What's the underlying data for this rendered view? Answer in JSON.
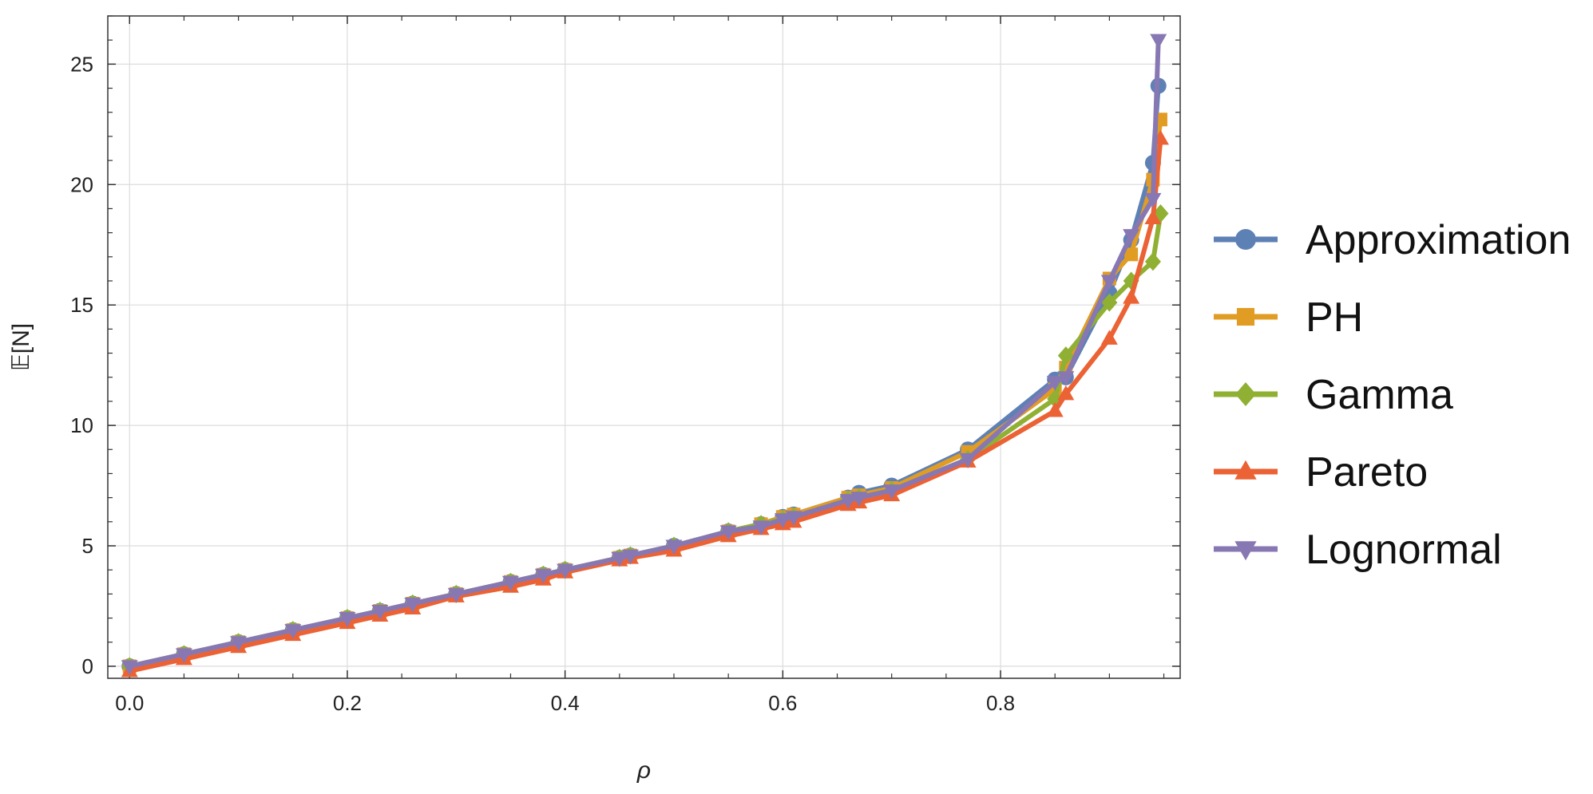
{
  "chart_data": {
    "type": "line",
    "xlabel": "ρ",
    "ylabel": "𝔼[N]",
    "xlim": [
      -0.02,
      0.965
    ],
    "ylim": [
      -0.5,
      27.0
    ],
    "x_ticks": [
      0.0,
      0.2,
      0.4,
      0.6,
      0.8
    ],
    "x_tick_labels": [
      "0.0",
      "0.2",
      "0.4",
      "0.6",
      "0.8"
    ],
    "y_ticks": [
      0,
      5,
      10,
      15,
      20,
      25
    ],
    "y_tick_labels": [
      "0",
      "5",
      "10",
      "15",
      "20",
      "25"
    ],
    "grid": true,
    "legend_position": "right",
    "series": [
      {
        "name": "Approximation",
        "color": "#5e81b5",
        "marker": "circle",
        "x": [
          0.0,
          0.05,
          0.1,
          0.15,
          0.2,
          0.23,
          0.26,
          0.3,
          0.35,
          0.38,
          0.4,
          0.45,
          0.46,
          0.5,
          0.55,
          0.58,
          0.6,
          0.61,
          0.66,
          0.67,
          0.7,
          0.77,
          0.85,
          0.86,
          0.9,
          0.92,
          0.94,
          0.945
        ],
        "y": [
          0.0,
          0.5,
          1.0,
          1.5,
          2.0,
          2.3,
          2.6,
          3.0,
          3.5,
          3.8,
          4.0,
          4.5,
          4.6,
          5.0,
          5.6,
          5.9,
          6.2,
          6.3,
          7.0,
          7.2,
          7.5,
          9.0,
          11.9,
          12.0,
          15.5,
          17.7,
          20.9,
          24.1
        ]
      },
      {
        "name": "PH",
        "color": "#e19c24",
        "marker": "square",
        "x": [
          0.0,
          0.05,
          0.1,
          0.15,
          0.2,
          0.23,
          0.26,
          0.3,
          0.35,
          0.38,
          0.4,
          0.45,
          0.46,
          0.5,
          0.55,
          0.58,
          0.6,
          0.61,
          0.66,
          0.67,
          0.7,
          0.77,
          0.85,
          0.86,
          0.9,
          0.92,
          0.94,
          0.947
        ],
        "y": [
          0.0,
          0.5,
          1.0,
          1.5,
          2.0,
          2.3,
          2.6,
          3.0,
          3.5,
          3.8,
          4.0,
          4.5,
          4.6,
          4.9,
          5.6,
          5.9,
          6.2,
          6.3,
          7.0,
          7.1,
          7.4,
          8.9,
          11.5,
          12.4,
          16.1,
          17.1,
          20.2,
          22.7
        ]
      },
      {
        "name": "Gamma",
        "color": "#8fb032",
        "marker": "diamond",
        "x": [
          0.0,
          0.05,
          0.1,
          0.15,
          0.2,
          0.23,
          0.26,
          0.3,
          0.35,
          0.38,
          0.4,
          0.45,
          0.46,
          0.5,
          0.55,
          0.58,
          0.6,
          0.61,
          0.66,
          0.67,
          0.7,
          0.77,
          0.85,
          0.86,
          0.9,
          0.92,
          0.94,
          0.947
        ],
        "y": [
          0.0,
          0.5,
          1.0,
          1.5,
          2.0,
          2.3,
          2.6,
          3.0,
          3.5,
          3.8,
          4.0,
          4.5,
          4.6,
          5.0,
          5.6,
          5.9,
          6.1,
          6.2,
          6.9,
          7.0,
          7.3,
          8.6,
          11.1,
          12.9,
          15.1,
          16.0,
          16.8,
          18.8
        ]
      },
      {
        "name": "Pareto",
        "color": "#eb6235",
        "marker": "triangle-up",
        "x": [
          0.0,
          0.05,
          0.1,
          0.15,
          0.2,
          0.23,
          0.26,
          0.3,
          0.35,
          0.38,
          0.4,
          0.45,
          0.46,
          0.5,
          0.55,
          0.58,
          0.6,
          0.61,
          0.66,
          0.67,
          0.7,
          0.77,
          0.85,
          0.86,
          0.9,
          0.92,
          0.94,
          0.947
        ],
        "y": [
          -0.2,
          0.3,
          0.8,
          1.3,
          1.8,
          2.1,
          2.4,
          2.9,
          3.3,
          3.6,
          3.9,
          4.4,
          4.5,
          4.8,
          5.4,
          5.7,
          5.9,
          6.0,
          6.7,
          6.8,
          7.1,
          8.5,
          10.6,
          11.3,
          13.6,
          15.3,
          18.6,
          21.9
        ]
      },
      {
        "name": "Lognormal",
        "color": "#8778b3",
        "marker": "triangle-down",
        "x": [
          0.0,
          0.05,
          0.1,
          0.15,
          0.2,
          0.23,
          0.26,
          0.3,
          0.35,
          0.38,
          0.4,
          0.45,
          0.46,
          0.5,
          0.55,
          0.58,
          0.6,
          0.61,
          0.66,
          0.67,
          0.7,
          0.77,
          0.85,
          0.86,
          0.9,
          0.92,
          0.94,
          0.945
        ],
        "y": [
          0.0,
          0.5,
          1.0,
          1.5,
          2.0,
          2.3,
          2.6,
          3.0,
          3.5,
          3.8,
          4.0,
          4.5,
          4.6,
          5.0,
          5.6,
          5.8,
          6.1,
          6.2,
          6.9,
          7.0,
          7.3,
          8.6,
          11.8,
          12.0,
          16.0,
          17.9,
          19.4,
          26.0
        ]
      }
    ]
  }
}
